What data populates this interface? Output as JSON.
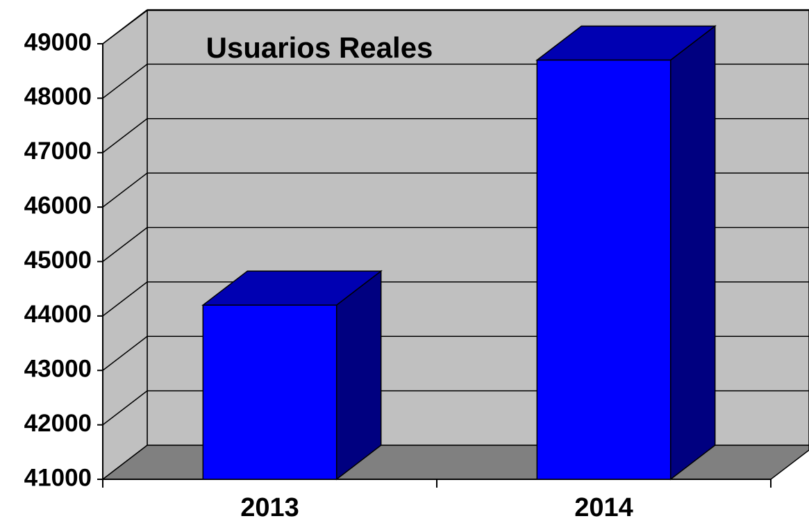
{
  "chart_data": {
    "type": "bar",
    "title": "Usuarios Reales",
    "categories": [
      "2013",
      "2014"
    ],
    "values": [
      44200,
      48700
    ],
    "color": "#0000ff",
    "ylim": [
      41000,
      49000
    ],
    "yticks": [
      41000,
      42000,
      43000,
      44000,
      45000,
      46000,
      47000,
      48000,
      49000
    ],
    "grid": true
  }
}
